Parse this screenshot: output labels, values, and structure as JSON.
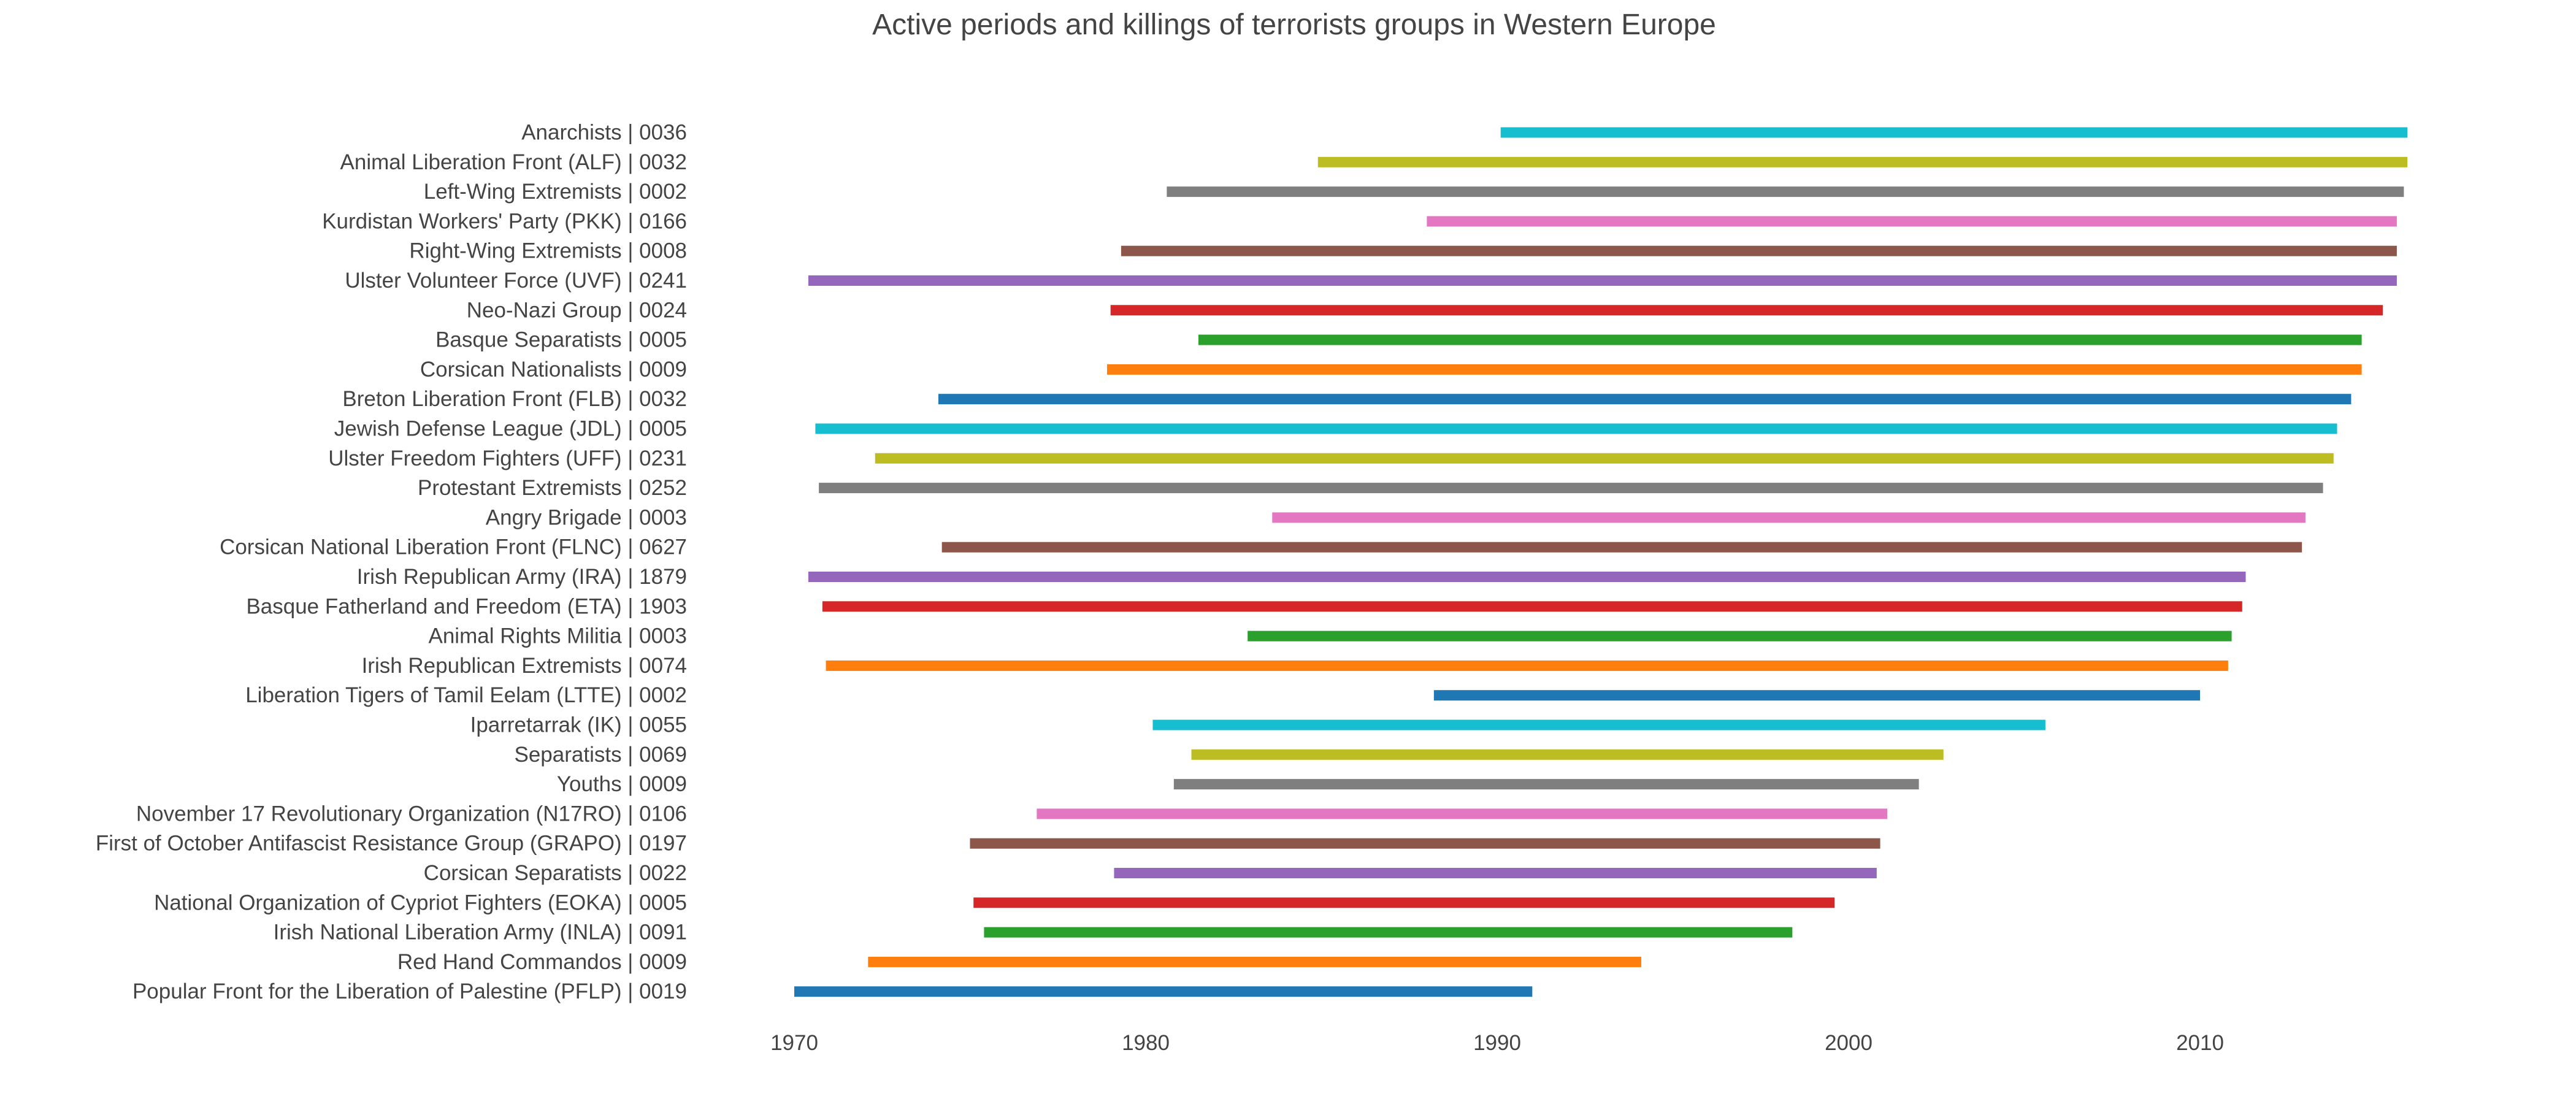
{
  "chart_data": {
    "type": "bar",
    "orientation": "horizontal-range",
    "title": "Active periods and killings of terrorists groups in Western Europe",
    "xlabel": "",
    "ylabel": "",
    "xlim": [
      1970,
      2020
    ],
    "xticks": [
      "1970",
      "1980",
      "1990",
      "2000",
      "2010"
    ],
    "grid": false,
    "legend": "none",
    "groups": [
      {
        "label": "Anarchists | 0036",
        "start": 1990.1,
        "end": 2015.9,
        "color": "#17becf"
      },
      {
        "label": "Animal Liberation Front (ALF) | 0032",
        "start": 1984.9,
        "end": 2015.9,
        "color": "#bcbd22"
      },
      {
        "label": "Left-Wing Extremists | 0002",
        "start": 1980.6,
        "end": 2015.8,
        "color": "#7f7f7f"
      },
      {
        "label": "Kurdistan Workers' Party (PKK) | 0166",
        "start": 1988.0,
        "end": 2015.6,
        "color": "#e377c2"
      },
      {
        "label": "Right-Wing Extremists | 0008",
        "start": 1979.3,
        "end": 2015.6,
        "color": "#8c564b"
      },
      {
        "label": "Ulster Volunteer Force (UVF) | 0241",
        "start": 1970.4,
        "end": 2015.6,
        "color": "#9467bd"
      },
      {
        "label": "Neo-Nazi Group | 0024",
        "start": 1979.0,
        "end": 2015.2,
        "color": "#d62728"
      },
      {
        "label": "Basque Separatists | 0005",
        "start": 1981.5,
        "end": 2014.6,
        "color": "#2ca02c"
      },
      {
        "label": "Corsican Nationalists | 0009",
        "start": 1978.9,
        "end": 2014.6,
        "color": "#ff7f0e"
      },
      {
        "label": "Breton Liberation Front (FLB) | 0032",
        "start": 1974.1,
        "end": 2014.3,
        "color": "#1f77b4"
      },
      {
        "label": "Jewish Defense League (JDL) | 0005",
        "start": 1970.6,
        "end": 2013.9,
        "color": "#17becf"
      },
      {
        "label": "Ulster Freedom Fighters (UFF) | 0231",
        "start": 1972.3,
        "end": 2013.8,
        "color": "#bcbd22"
      },
      {
        "label": "Protestant Extremists | 0252",
        "start": 1970.7,
        "end": 2013.5,
        "color": "#7f7f7f"
      },
      {
        "label": "Angry Brigade | 0003",
        "start": 1983.6,
        "end": 2013.0,
        "color": "#e377c2"
      },
      {
        "label": "Corsican National Liberation Front (FLNC) | 0627",
        "start": 1974.2,
        "end": 2012.9,
        "color": "#8c564b"
      },
      {
        "label": "Irish Republican Army (IRA) | 1879",
        "start": 1970.4,
        "end": 2011.3,
        "color": "#9467bd"
      },
      {
        "label": "Basque Fatherland and Freedom (ETA) | 1903",
        "start": 1970.8,
        "end": 2011.2,
        "color": "#d62728"
      },
      {
        "label": "Animal Rights Militia | 0003",
        "start": 1982.9,
        "end": 2010.9,
        "color": "#2ca02c"
      },
      {
        "label": "Irish Republican Extremists | 0074",
        "start": 1970.9,
        "end": 2010.8,
        "color": "#ff7f0e"
      },
      {
        "label": "Liberation Tigers of Tamil Eelam (LTTE) | 0002",
        "start": 1988.2,
        "end": 2010.0,
        "color": "#1f77b4"
      },
      {
        "label": "Iparretarrak (IK) | 0055",
        "start": 1980.2,
        "end": 2005.6,
        "color": "#17becf"
      },
      {
        "label": "Separatists | 0069",
        "start": 1981.3,
        "end": 2002.7,
        "color": "#bcbd22"
      },
      {
        "label": "Youths | 0009",
        "start": 1980.8,
        "end": 2002.0,
        "color": "#7f7f7f"
      },
      {
        "label": "November 17 Revolutionary Organization (N17RO) | 0106",
        "start": 1976.9,
        "end": 2001.1,
        "color": "#e377c2"
      },
      {
        "label": "First of October Antifascist Resistance Group (GRAPO) | 0197",
        "start": 1975.0,
        "end": 2000.9,
        "color": "#8c564b"
      },
      {
        "label": "Corsican Separatists | 0022",
        "start": 1979.1,
        "end": 2000.8,
        "color": "#9467bd"
      },
      {
        "label": "National Organization of Cypriot Fighters (EOKA) | 0005",
        "start": 1975.1,
        "end": 1999.6,
        "color": "#d62728"
      },
      {
        "label": "Irish National Liberation Army (INLA) | 0091",
        "start": 1975.4,
        "end": 1998.4,
        "color": "#2ca02c"
      },
      {
        "label": "Red Hand Commandos | 0009",
        "start": 1972.1,
        "end": 1994.1,
        "color": "#ff7f0e"
      },
      {
        "label": "Popular Front for the Liberation of Palestine (PFLP) | 0019",
        "start": 1970.0,
        "end": 1991.0,
        "color": "#1f77b4"
      }
    ]
  }
}
